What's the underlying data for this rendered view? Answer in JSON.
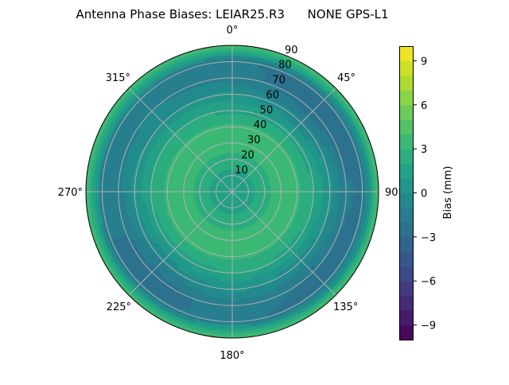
{
  "chart_data": {
    "type": "heatmap",
    "subtype": "polar-filled-contour",
    "title": "Antenna Phase Biases: LEIAR25.R3      NONE GPS-L1",
    "angular_axis": {
      "direction": "clockwise",
      "zero_location": "top",
      "tick_labels": [
        "0°",
        "45°",
        "90°",
        "135°",
        "180°",
        "225°",
        "270°",
        "315°"
      ]
    },
    "radial_axis": {
      "range": [
        0,
        90
      ],
      "tick_labels": [
        "10",
        "20",
        "30",
        "40",
        "50",
        "60",
        "70",
        "80",
        "90"
      ],
      "label_angle_deg": 22.5
    },
    "grid": true,
    "azimuth_deg": [
      0,
      45,
      90,
      135,
      180,
      225,
      270,
      315
    ],
    "zenith_deg": [
      0,
      10,
      20,
      30,
      40,
      50,
      60,
      70,
      80,
      90
    ],
    "bias_mm": [
      [
        1.5,
        1.5,
        1.5,
        1.5,
        1.5,
        1.5,
        1.5,
        1.5
      ],
      [
        1.5,
        1.5,
        1.5,
        1.5,
        1.5,
        1.5,
        1.5,
        1.5
      ],
      [
        2.5,
        2.5,
        2.5,
        2.5,
        2.5,
        2.5,
        2.5,
        2.5
      ],
      [
        3.5,
        3.5,
        3.5,
        3.5,
        3.5,
        3.5,
        3.5,
        3.5
      ],
      [
        3.3,
        3.2,
        3.3,
        3.2,
        3.3,
        3.2,
        3.3,
        3.3
      ],
      [
        1.8,
        1.5,
        2.0,
        1.8,
        2.0,
        1.5,
        2.0,
        2.0
      ],
      [
        0.2,
        -1.0,
        0.5,
        -0.5,
        0.3,
        -1.0,
        0.3,
        0.0
      ],
      [
        -1.5,
        -2.8,
        -1.8,
        -2.2,
        -1.5,
        -2.6,
        -1.5,
        -1.0
      ],
      [
        -1.8,
        -2.5,
        -2.2,
        -2.5,
        -1.8,
        -2.2,
        -1.8,
        -1.5
      ],
      [
        4.0,
        4.5,
        4.0,
        4.0,
        4.5,
        4.5,
        4.5,
        4.0
      ]
    ],
    "colorbar": {
      "label": "Bias (mm)",
      "range": [
        -10,
        10
      ],
      "levels_step": 1,
      "colormap": "viridis",
      "tick_labels": [
        "−9",
        "−6",
        "−3",
        "0",
        "3",
        "6",
        "9"
      ],
      "tick_values": [
        -9,
        -6,
        -3,
        0,
        3,
        6,
        9
      ]
    },
    "grid_color": "#b0b0b0"
  }
}
